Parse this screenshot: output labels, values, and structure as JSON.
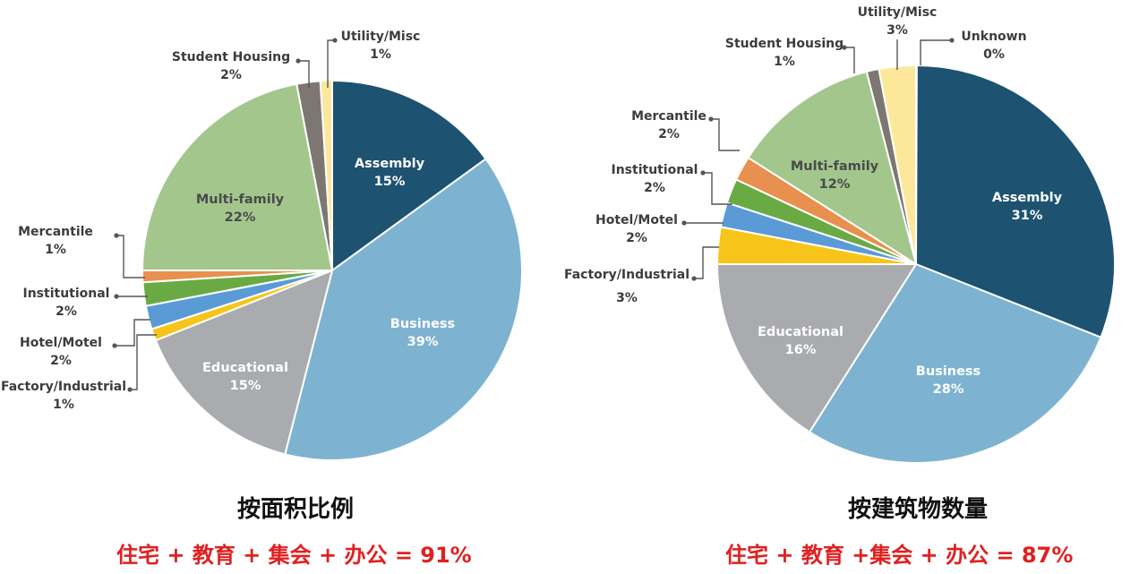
{
  "colors": {
    "Assembly": "#1d5271",
    "Business": "#7db3d0",
    "Educational": "#a9abae",
    "Factory/Industrial": "#f7c419",
    "Hotel/Motel": "#5b9bd5",
    "Institutional": "#6aaa44",
    "Mercantile": "#e8904f",
    "Multi-family": "#a3c68d",
    "Student Housing": "#7d7671",
    "Utility/Misc": "#fce79b",
    "Unknown": "#b8b0a4"
  },
  "chart_data": [
    {
      "type": "pie",
      "title": "按面积比例",
      "summary": "住宅 + 教育 + 集会 + 办公 = 91%",
      "categories": [
        "Assembly",
        "Business",
        "Educational",
        "Factory/Industrial",
        "Hotel/Motel",
        "Institutional",
        "Mercantile",
        "Multi-family",
        "Student Housing",
        "Utility/Misc"
      ],
      "values": [
        15,
        39,
        15,
        1,
        2,
        2,
        1,
        22,
        2,
        1
      ],
      "labels": [
        "15%",
        "39%",
        "15%",
        "1%",
        "2%",
        "2%",
        "1%",
        "22%",
        "2%",
        "1%"
      ]
    },
    {
      "type": "pie",
      "title": "按建筑物数量",
      "summary": "住宅 + 教育 +集会 + 办公 = 87%",
      "categories": [
        "Assembly",
        "Business",
        "Educational",
        "Factory/Industrial",
        "Hotel/Motel",
        "Institutional",
        "Mercantile",
        "Multi-family",
        "Student Housing",
        "Utility/Misc",
        "Unknown"
      ],
      "values": [
        31,
        28,
        16,
        3,
        2,
        2,
        2,
        12,
        1,
        3,
        0
      ],
      "labels": [
        "31%",
        "28%",
        "16%",
        "3%",
        "2%",
        "2%",
        "2%",
        "12%",
        "1%",
        "3%",
        "0%"
      ]
    }
  ]
}
